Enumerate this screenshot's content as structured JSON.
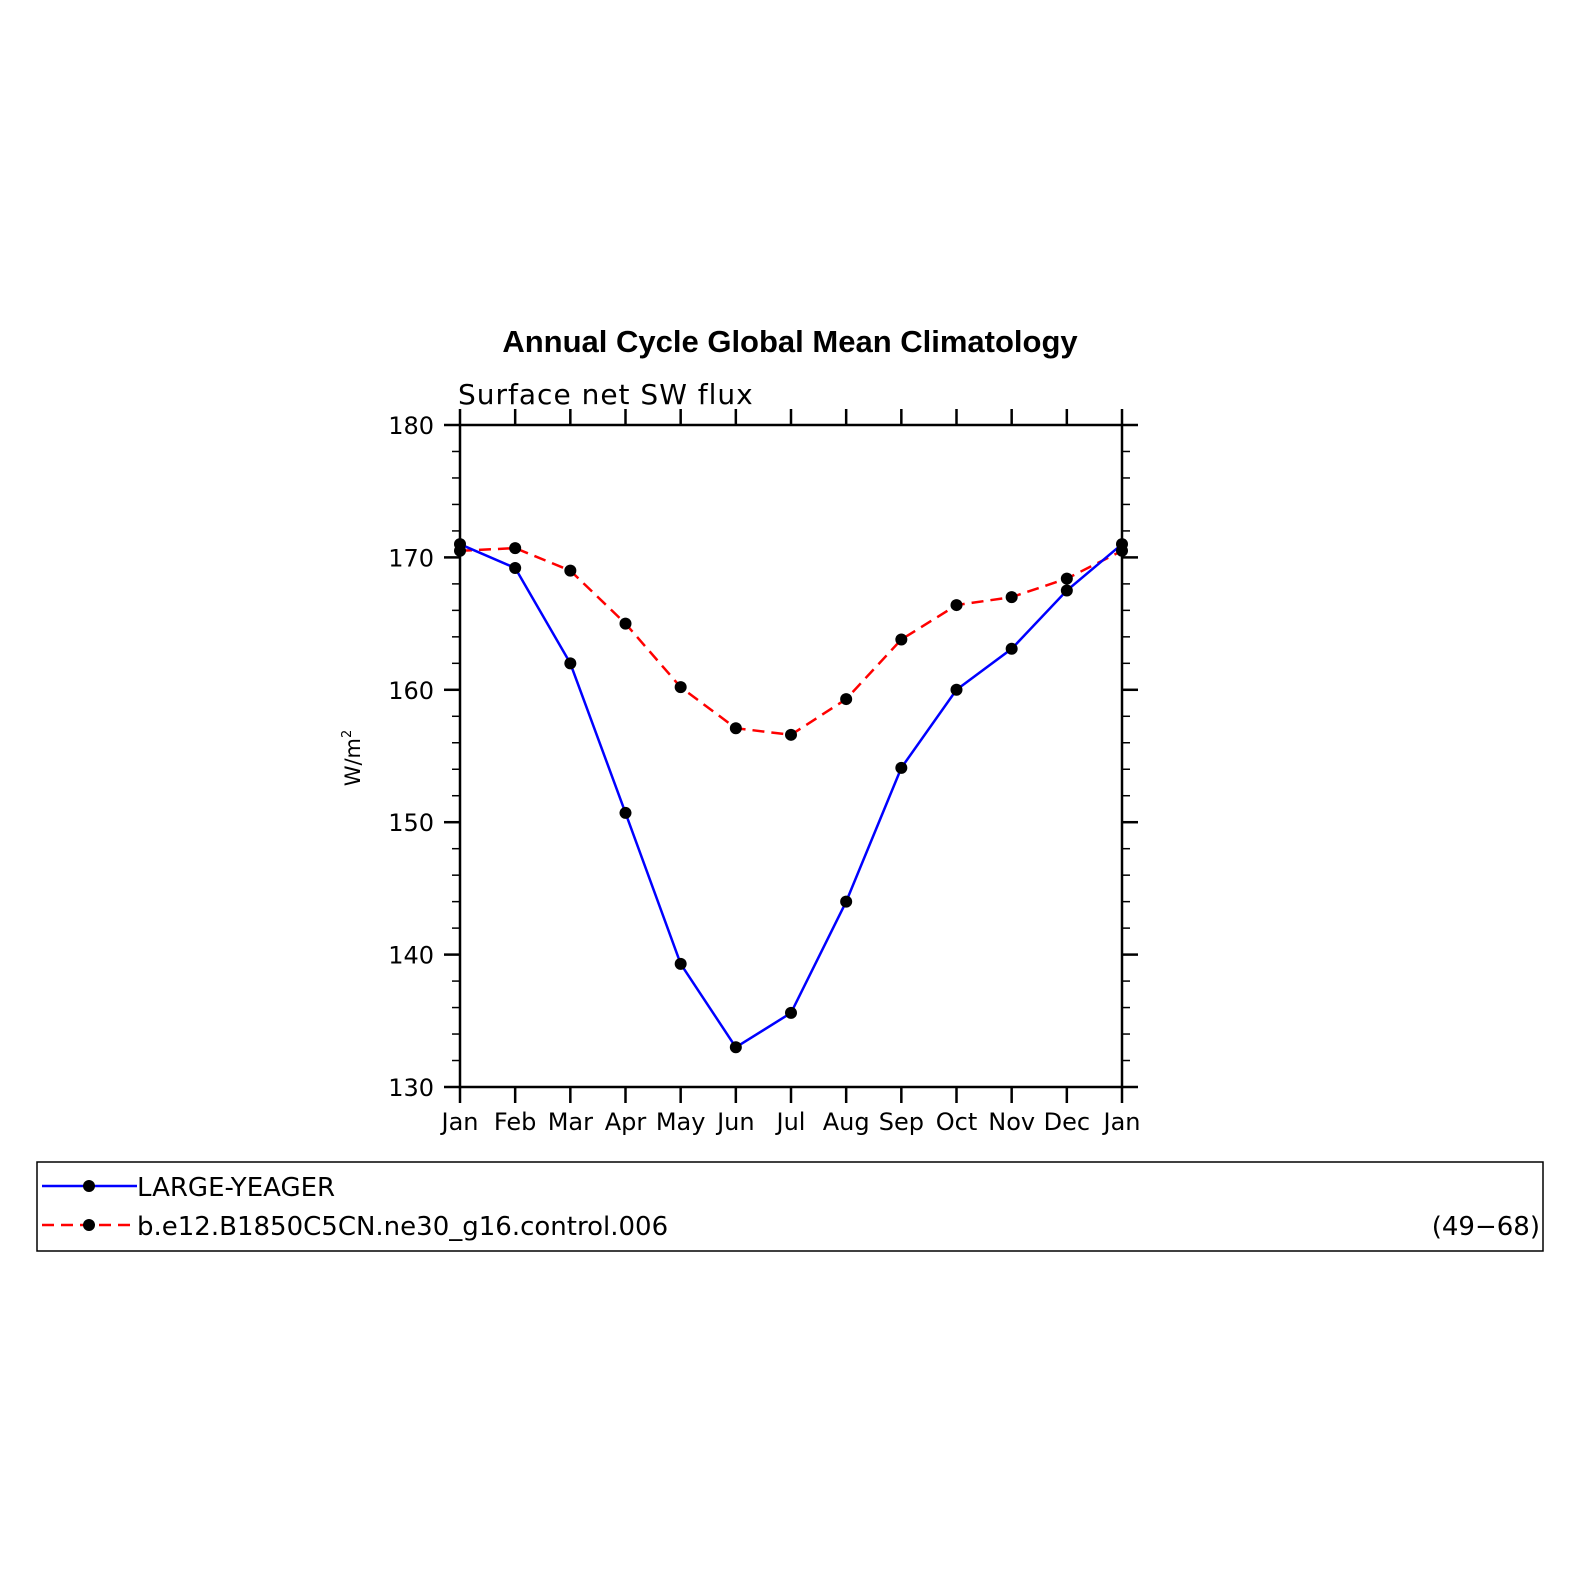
{
  "chart_data": {
    "type": "line",
    "title": "Annual Cycle Global Mean Climatology",
    "subtitle": "Surface net SW flux",
    "ylabel": "W/m",
    "ylabel_sup": "2",
    "xlabel": "",
    "categories": [
      "Jan",
      "Feb",
      "Mar",
      "Apr",
      "May",
      "Jun",
      "Jul",
      "Aug",
      "Sep",
      "Oct",
      "Nov",
      "Dec",
      "Jan"
    ],
    "ylim": [
      130,
      180
    ],
    "yticks": [
      130,
      140,
      150,
      160,
      170,
      180
    ],
    "grid": false,
    "legend_position": "bottom",
    "series": [
      {
        "name": "LARGE-YEAGER",
        "color": "#0000ff",
        "dash": "solid",
        "marker": "circle",
        "values": [
          171.0,
          169.2,
          162.0,
          150.7,
          139.3,
          133.0,
          135.6,
          144.0,
          154.1,
          160.0,
          163.1,
          167.5,
          171.0
        ]
      },
      {
        "name": "b.e12.B1850C5CN.ne30_g16.control.006",
        "years": "(49−68)",
        "color": "#ff0000",
        "dash": "dashed",
        "marker": "circle",
        "values": [
          170.5,
          170.7,
          169.0,
          165.0,
          160.2,
          157.1,
          156.6,
          159.3,
          163.8,
          166.4,
          167.0,
          168.4,
          170.5
        ]
      }
    ]
  }
}
